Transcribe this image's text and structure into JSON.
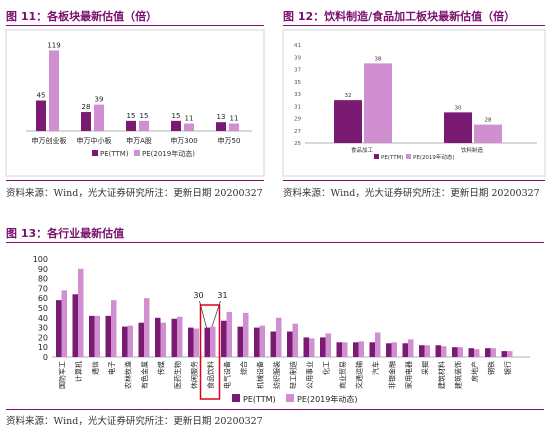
{
  "figure11": {
    "title": "图 11：各板块最新估值（倍）",
    "source": "资料来源：Wind，光大证券研究所注：更新日期 20200327",
    "chart_data": {
      "type": "bar",
      "categories": [
        "申万创业板",
        "申万中小板",
        "申万A股",
        "申万300",
        "申万50"
      ],
      "series": [
        {
          "name": "PE(TTM)",
          "values": [
            45,
            28,
            15,
            15,
            13
          ],
          "color": "#7b1a72"
        },
        {
          "name": "PE(2019年动态)",
          "values": [
            119,
            39,
            15,
            11,
            11
          ],
          "color": "#d08fd1"
        }
      ],
      "ylim": [
        0,
        130
      ],
      "legend": "bottom"
    }
  },
  "figure12": {
    "title": "图 12：饮料制造/食品加工板块最新估值（倍）",
    "source": "资料来源：Wind，光大证券研究所注：更新日期 20200327",
    "chart_data": {
      "type": "bar",
      "categories": [
        "食品加工",
        "饮料制造"
      ],
      "series": [
        {
          "name": "PE(TTM)",
          "values": [
            32,
            30
          ],
          "color": "#7b1a72"
        },
        {
          "name": "PE(2019年动态)",
          "values": [
            38,
            28
          ],
          "color": "#d08fd1"
        }
      ],
      "yticks": [
        25,
        27,
        29,
        31,
        33,
        35,
        37,
        39,
        41
      ],
      "ylim": [
        25,
        41
      ],
      "legend": "bottom"
    }
  },
  "figure13": {
    "title": "图 13：各行业最新估值",
    "source": "资料来源：Wind，光大证券研究所注：更新日期 20200327",
    "callout": {
      "category": "食品饮料",
      "ttm_label": "30",
      "dyn_label": "31"
    },
    "chart_data": {
      "type": "bar",
      "categories": [
        "国防军工",
        "计算机",
        "通信",
        "电子",
        "农林牧渔",
        "有色金属",
        "传媒",
        "医药生物",
        "休闲服务",
        "食品饮料",
        "电气设备",
        "综合",
        "机械设备",
        "纺织服装",
        "轻工制造",
        "公用事业",
        "化工",
        "商业贸易",
        "交通运输",
        "汽车",
        "非银金融",
        "家用电器",
        "采掘",
        "建筑材料",
        "建筑装饰",
        "房地产",
        "钢铁",
        "银行"
      ],
      "series": [
        {
          "name": "PE(TTM)",
          "values": [
            58,
            64,
            42,
            42,
            31,
            35,
            40,
            39,
            30,
            30,
            37,
            31,
            30,
            26,
            26,
            20,
            20,
            15,
            15,
            15,
            14,
            14,
            12,
            12,
            10,
            9,
            9,
            6
          ],
          "color": "#7b1a72"
        },
        {
          "name": "PE(2019年动态)",
          "values": [
            68,
            90,
            42,
            58,
            32,
            60,
            35,
            41,
            29,
            31,
            46,
            45,
            32,
            40,
            34,
            19,
            24,
            15,
            16,
            25,
            15,
            18,
            12,
            11,
            10,
            8,
            9,
            6
          ],
          "color": "#d08fd1"
        }
      ],
      "yticks": [
        0,
        10,
        20,
        30,
        40,
        50,
        60,
        70,
        80,
        90,
        100
      ],
      "ylim": [
        0,
        100
      ],
      "legend": "bottom"
    }
  }
}
